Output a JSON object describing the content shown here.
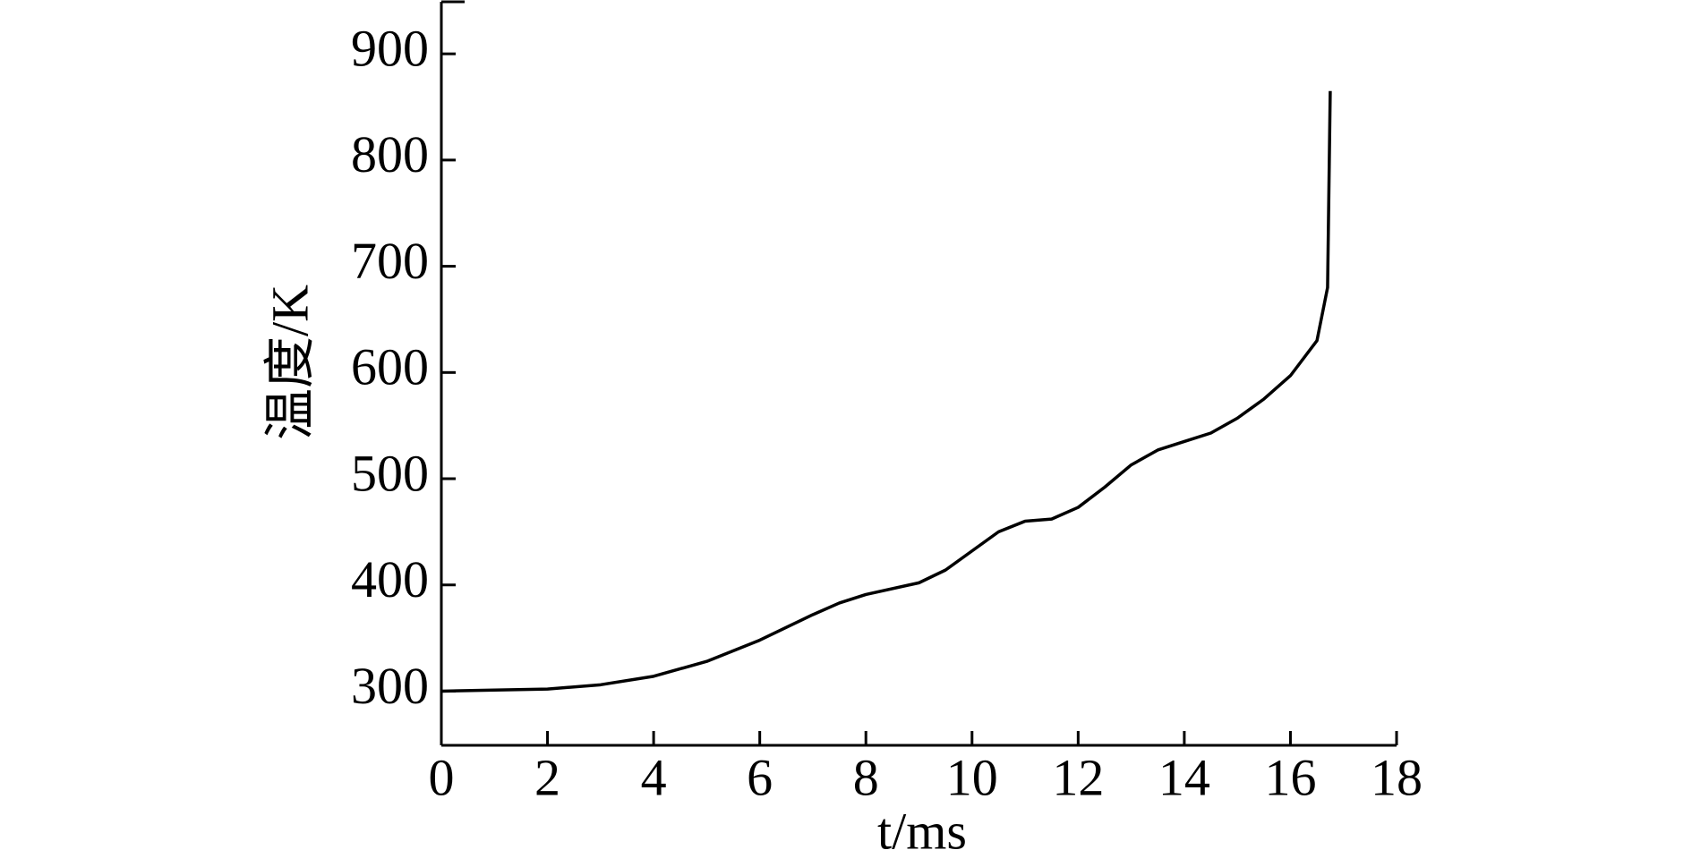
{
  "chart_data": {
    "type": "line",
    "x_label": "t/ms",
    "y_label": "温度/K",
    "x": [
      0,
      1,
      2,
      3,
      4,
      5,
      6,
      7,
      7.5,
      8,
      9,
      9.5,
      10,
      10.5,
      11,
      11.5,
      12,
      12.5,
      13,
      13.5,
      14,
      14.5,
      15,
      15.5,
      16,
      16.5,
      16.7,
      16.75
    ],
    "series": [
      {
        "color": "#000000",
        "values": [
          300,
          301,
          302,
          306,
          314,
          328,
          348,
          372,
          383,
          391,
          402,
          414,
          432,
          450,
          460,
          462,
          473,
          492,
          513,
          527,
          535,
          543,
          557,
          575,
          597,
          630,
          680,
          865
        ]
      }
    ],
    "xlim": [
      0,
      18
    ],
    "xticks": [
      0,
      2,
      4,
      6,
      8,
      10,
      12,
      14,
      16,
      18
    ],
    "ylim": [
      249,
      949
    ],
    "yticks": [
      300,
      400,
      500,
      600,
      700,
      800,
      900
    ]
  }
}
